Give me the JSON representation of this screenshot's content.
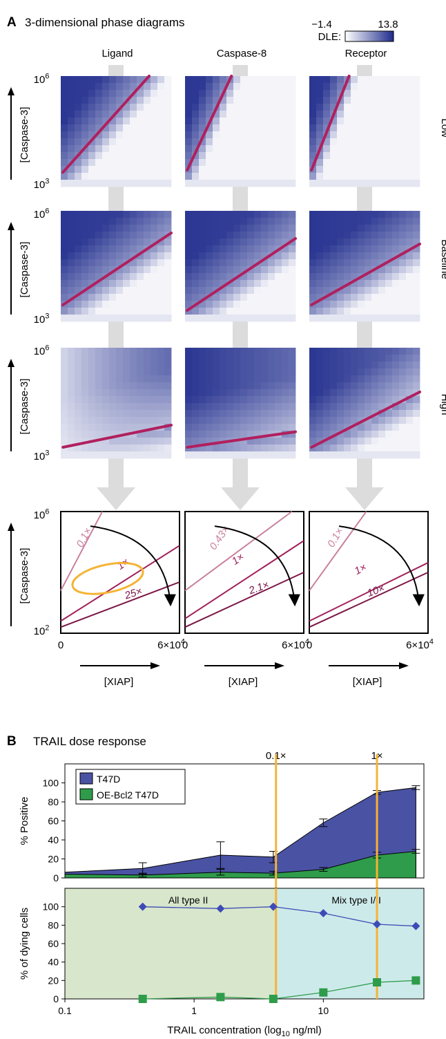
{
  "panel_a": {
    "letter": "A",
    "title": "3-dimensional phase diagrams",
    "colorbar": {
      "label": "DLE:",
      "min": "−1.4",
      "max": "13.8",
      "colors": [
        "#ffffff",
        "#1f2c8c"
      ]
    },
    "columns": [
      "Ligand",
      "Caspase-8",
      "Receptor"
    ],
    "rows": [
      "Low",
      "Baseline",
      "High"
    ],
    "ylabel": "[Caspase-3]",
    "ytick_top": "10",
    "ytick_top_exp": "6",
    "ytick_bottom": "10",
    "ytick_bottom_exp": "3",
    "line_color": "#b0205e"
  },
  "panel_a_summary": {
    "ylabel": "[Caspase-3]",
    "ytick_top": "10",
    "ytick_top_exp": "6",
    "ytick_bottom": "10",
    "ytick_bottom_exp": "2",
    "xtick_left": "0",
    "xtick_right": "6×10",
    "xtick_right_exp": "4",
    "xlabel": "[XIAP]",
    "boxes": [
      {
        "labels": [
          "0.1×",
          "1×",
          "25×"
        ]
      },
      {
        "labels": [
          "0.43×",
          "1×",
          "2.1×"
        ]
      },
      {
        "labels": [
          "0.1×",
          "1×",
          "10×"
        ]
      }
    ],
    "colors": {
      "light": "#c9809e",
      "mid": "#a0205a",
      "dark": "#7a1545",
      "ellipse": "#f5b335"
    }
  },
  "panel_b": {
    "letter": "B",
    "title": "TRAIL dose response",
    "vline_labels": [
      "0.1×",
      "1×"
    ]
  },
  "chart_data": [
    {
      "type": "area",
      "title": "TRAIL dose response",
      "ylabel": "% Positive",
      "xscale": "log",
      "xlim": [
        0.1,
        60
      ],
      "ylim": [
        0,
        120
      ],
      "yticks": [
        0,
        20,
        40,
        60,
        80,
        100
      ],
      "vlines": [
        4.3,
        26
      ],
      "series": [
        {
          "name": "T47D",
          "color": "#4a52a4",
          "x": [
            0.1,
            0.4,
            1.6,
            4.1,
            10,
            26,
            52
          ],
          "y": [
            6,
            10,
            24,
            22,
            58,
            90,
            95
          ],
          "err": [
            null,
            6,
            14,
            6,
            4,
            2,
            2
          ]
        },
        {
          "name": "OE-Bcl2 T47D",
          "color": "#2e9c4a",
          "x": [
            0.1,
            0.4,
            1.6,
            4.1,
            10,
            26,
            52
          ],
          "y": [
            4,
            3,
            6,
            5,
            9,
            24,
            28
          ],
          "err": [
            null,
            2,
            3,
            2,
            2,
            3,
            2
          ]
        }
      ],
      "legend_position": "top-left"
    },
    {
      "type": "line",
      "ylabel": "% of dying cells",
      "xlabel": "TRAIL concentration (log",
      "xlabel_sub": "10",
      "xlabel_tail": " ng/ml)",
      "xscale": "log",
      "xlim": [
        0.1,
        60
      ],
      "ylim": [
        0,
        120
      ],
      "yticks": [
        0,
        20,
        40,
        60,
        80,
        100
      ],
      "xticks": [
        0.1,
        1,
        10
      ],
      "xtick_labels": [
        "0.1",
        "1",
        "10"
      ],
      "vlines": [
        4.3,
        26
      ],
      "regions": [
        {
          "label": "All type II",
          "from": 0.1,
          "to": 4.3,
          "color": "#d8e6cc"
        },
        {
          "label": "Mix type I/II",
          "from": 4.3,
          "to": 60,
          "color": "#cdeaea"
        }
      ],
      "series": [
        {
          "color": "#3d4bb5",
          "marker": "diamond",
          "x": [
            0.4,
            1.6,
            4.1,
            10,
            26,
            52
          ],
          "y": [
            100,
            98,
            100,
            93,
            81,
            79
          ]
        },
        {
          "color": "#2e9c4a",
          "marker": "square",
          "x": [
            0.4,
            1.6,
            4.1,
            10,
            26,
            52
          ],
          "y": [
            0,
            2,
            0,
            7,
            18,
            20
          ]
        }
      ]
    }
  ]
}
